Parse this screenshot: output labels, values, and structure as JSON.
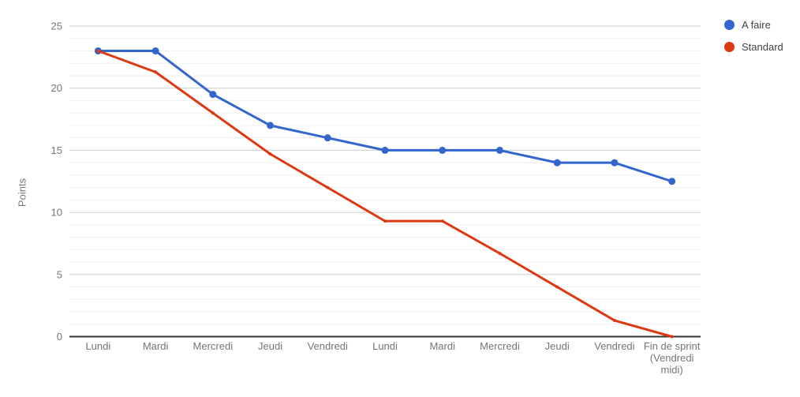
{
  "chart_data": {
    "type": "line",
    "title": "",
    "xlabel": "",
    "ylabel": "Points",
    "categories": [
      "Lundi",
      "Mardi",
      "Mercredi",
      "Jeudi",
      "Vendredi",
      "Lundi",
      "Mardi",
      "Mercredi",
      "Jeudi",
      "Vendredi",
      "Fin de sprint\n(Vendredi\nmidi)"
    ],
    "series": [
      {
        "name": "A faire",
        "color": "#3366cc",
        "values": [
          23,
          23,
          19.5,
          17,
          16,
          15,
          15,
          15,
          14,
          14,
          12.5
        ],
        "marker_radius": 4.5,
        "line_width": 3
      },
      {
        "name": "Standard",
        "color": "#dc3912",
        "values": [
          23,
          21.3,
          18,
          14.7,
          12,
          9.3,
          9.3,
          6.7,
          4,
          1.3,
          0
        ],
        "marker_radius": 2,
        "line_width": 3
      }
    ],
    "ylim": [
      0,
      25
    ],
    "yticks": [
      0,
      5,
      10,
      15,
      20,
      25
    ],
    "minor_gridline_step": 1,
    "grid": true,
    "legend_position": "right"
  }
}
